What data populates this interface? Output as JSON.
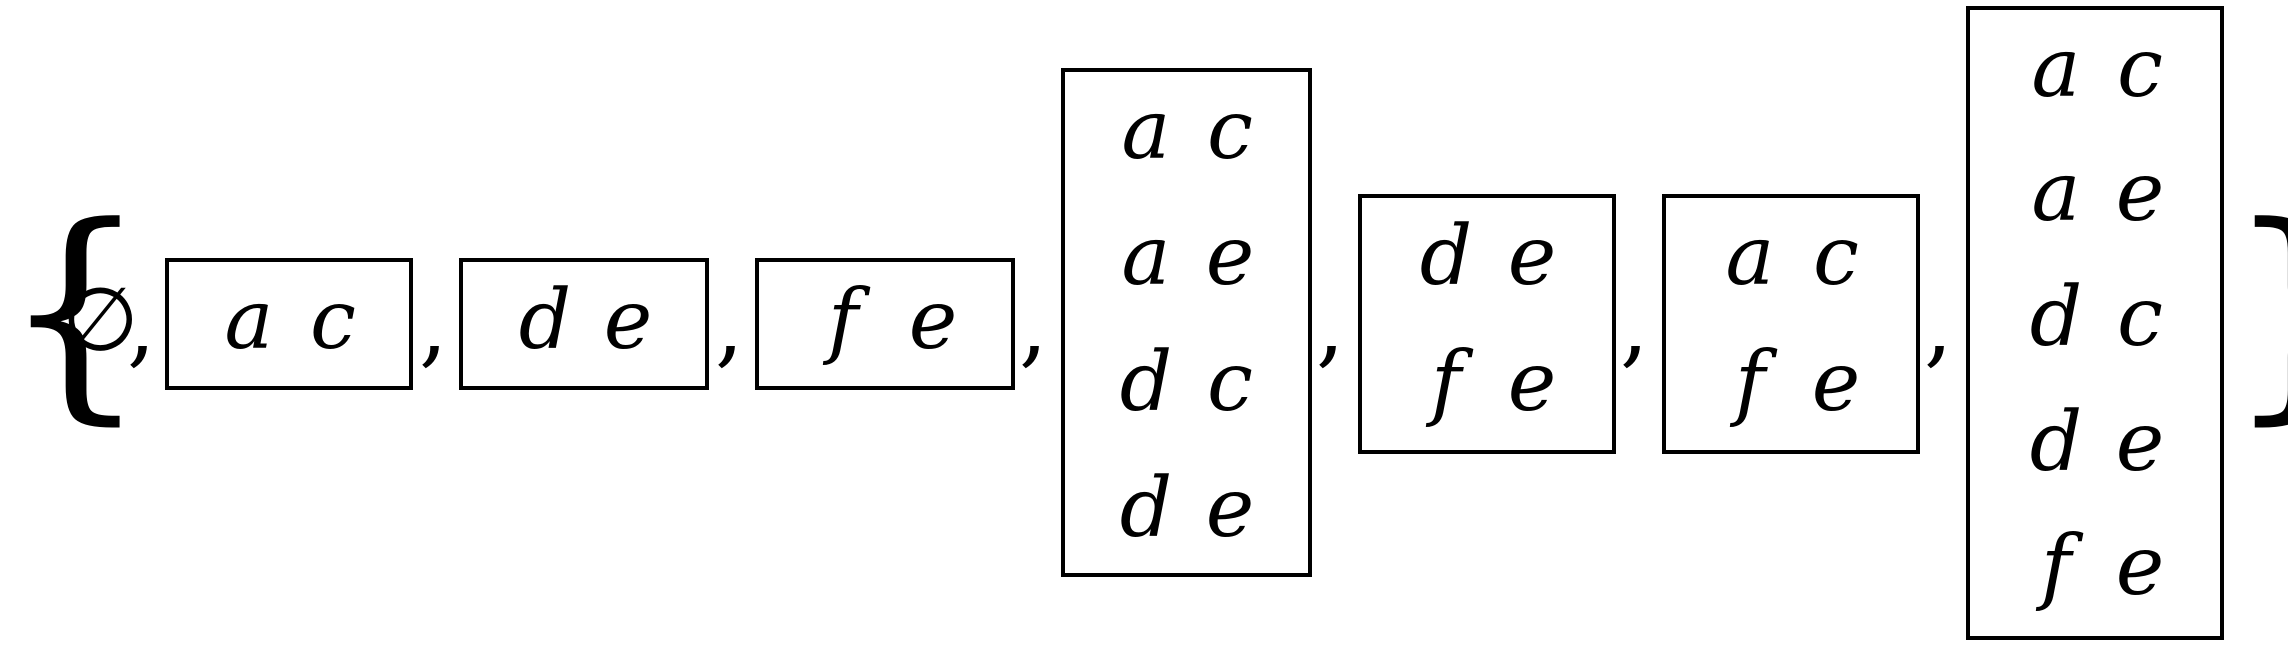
{
  "expression": {
    "open_brace": "{",
    "close_brace": "}",
    "comma": ",",
    "elements": [
      {
        "kind": "symbol",
        "text": "∅"
      },
      {
        "kind": "tableau",
        "rows": [
          [
            "a",
            "c"
          ]
        ]
      },
      {
        "kind": "tableau",
        "rows": [
          [
            "d",
            "e"
          ]
        ]
      },
      {
        "kind": "tableau",
        "rows": [
          [
            "f",
            "e"
          ]
        ]
      },
      {
        "kind": "tableau",
        "rows": [
          [
            "a",
            "c"
          ],
          [
            "a",
            "e"
          ],
          [
            "d",
            "c"
          ],
          [
            "d",
            "e"
          ]
        ]
      },
      {
        "kind": "tableau",
        "rows": [
          [
            "d",
            "e"
          ],
          [
            "f",
            "e"
          ]
        ]
      },
      {
        "kind": "tableau",
        "rows": [
          [
            "a",
            "c"
          ],
          [
            "f",
            "e"
          ]
        ]
      },
      {
        "kind": "tableau",
        "rows": [
          [
            "a",
            "c"
          ],
          [
            "a",
            "e"
          ],
          [
            "d",
            "c"
          ],
          [
            "d",
            "e"
          ],
          [
            "f",
            "e"
          ]
        ]
      }
    ]
  }
}
